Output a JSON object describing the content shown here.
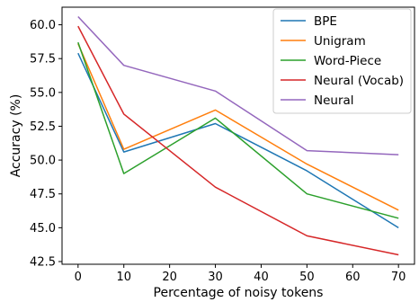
{
  "chart_data": {
    "type": "line",
    "x": [
      0,
      10,
      30,
      50,
      70
    ],
    "xlabel": "Percentage of noisy tokens",
    "ylabel": "Accuracy (%)",
    "xlim": [
      -3.5,
      73.5
    ],
    "ylim": [
      42.3,
      61.3
    ],
    "xticks": [
      0,
      10,
      20,
      30,
      40,
      50,
      60,
      70
    ],
    "yticks": [
      42.5,
      45.0,
      47.5,
      50.0,
      52.5,
      55.0,
      57.5,
      60.0
    ],
    "ytick_labels": [
      "42.5",
      "45.0",
      "47.5",
      "50.0",
      "52.5",
      "55.0",
      "57.5",
      "60.0"
    ],
    "grid": false,
    "legend": "top-right",
    "series": [
      {
        "name": "BPE",
        "color": "#1f77b4",
        "values": [
          57.9,
          50.6,
          52.7,
          49.2,
          45.0
        ]
      },
      {
        "name": "Unigram",
        "color": "#ff7f0e",
        "values": [
          58.6,
          50.8,
          53.7,
          49.7,
          46.3
        ]
      },
      {
        "name": "Word-Piece",
        "color": "#2ca02c",
        "values": [
          58.7,
          49.0,
          53.1,
          47.5,
          45.7
        ]
      },
      {
        "name": "Neural (Vocab)",
        "color": "#d62728",
        "values": [
          59.9,
          53.4,
          48.0,
          44.4,
          43.0
        ]
      },
      {
        "name": "Neural",
        "color": "#9467bd",
        "values": [
          60.6,
          57.0,
          55.1,
          50.7,
          50.4
        ]
      }
    ]
  }
}
